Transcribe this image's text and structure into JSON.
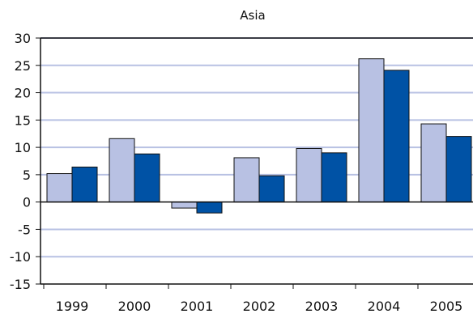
{
  "chart_data": {
    "type": "bar",
    "title": "Asia",
    "xlabel": "",
    "ylabel": "",
    "categories": [
      "1999",
      "2000",
      "2001",
      "2002",
      "2003",
      "2004",
      "2005"
    ],
    "series": [
      {
        "color": "#b8c1e3",
        "values": [
          5.2,
          11.6,
          -1.1,
          8.1,
          9.8,
          26.2,
          14.3
        ]
      },
      {
        "color": "#0052a5",
        "values": [
          6.4,
          8.8,
          -2.0,
          4.8,
          9.0,
          24.1,
          12.0
        ]
      }
    ],
    "ylim": [
      -15,
      30
    ],
    "yticks": [
      -15,
      -10,
      -5,
      0,
      5,
      10,
      15,
      20,
      25,
      30
    ],
    "grid": true,
    "grid_color": "#b8c1e3",
    "legend": "none"
  }
}
